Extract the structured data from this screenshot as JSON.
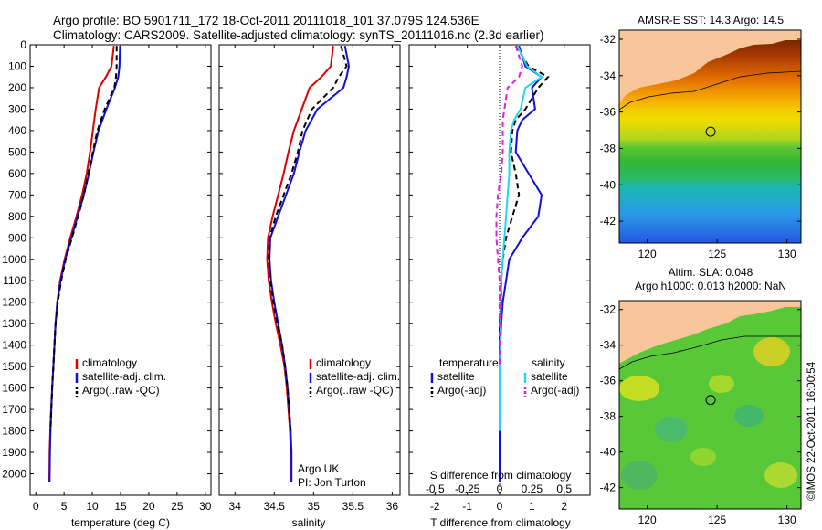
{
  "header": {
    "line1": "Argo profile: BO 5901711_172 18-Oct-2011 20111018_101 37.079S 124.536E",
    "line2": "Climatology: CARS2009. Satellite-adjusted climatology: synTS_20111016.nc (2.3d earlier)"
  },
  "credit": "©IMOS 22-Oct-2011 16:00:54",
  "colors": {
    "climatology": "#dd0000",
    "satellite": "#1010dd",
    "argo": "#000000",
    "salinity_satellite": "#22d8e8",
    "salinity_argo": "#dd22dd"
  },
  "chart_data": [
    {
      "type": "line",
      "name": "temperature",
      "xlabel": "temperature (deg C)",
      "ylabel": "",
      "xlim": [
        -1,
        31
      ],
      "ylim": [
        2100,
        0
      ],
      "xticks": [
        0,
        5,
        10,
        15,
        20,
        25,
        30
      ],
      "yticks": [
        0,
        100,
        200,
        300,
        400,
        500,
        600,
        700,
        800,
        900,
        1000,
        1100,
        1200,
        1300,
        1400,
        1500,
        1600,
        1700,
        1800,
        1900,
        2000
      ],
      "legend": [
        "climatology",
        "satellite-adj. clim.",
        "Argo(..raw -QC)"
      ],
      "legend_position": "lower-center",
      "series": [
        {
          "name": "climatology",
          "color": "climatology",
          "dash": false,
          "x": [
            13.8,
            13.4,
            12.4,
            11.2,
            10.6,
            10.1,
            9.6,
            9.0,
            8.2,
            7.2,
            6.1,
            5.1,
            4.3,
            3.8,
            3.5,
            3.3,
            3.1,
            2.9,
            2.7,
            2.55,
            2.45,
            2.4
          ],
          "y": [
            5,
            100,
            150,
            200,
            300,
            400,
            500,
            600,
            700,
            800,
            900,
            1000,
            1100,
            1200,
            1300,
            1400,
            1500,
            1600,
            1700,
            1800,
            1900,
            2040
          ]
        },
        {
          "name": "satellite-adj. clim.",
          "color": "satellite",
          "dash": false,
          "x": [
            14.9,
            14.8,
            14.6,
            14.0,
            12.5,
            11.1,
            10.2,
            9.4,
            8.5,
            7.4,
            6.3,
            5.2,
            4.4,
            3.8,
            3.5,
            3.3,
            3.1,
            2.9,
            2.75,
            2.6,
            2.5,
            2.45
          ],
          "y": [
            5,
            100,
            150,
            200,
            300,
            400,
            500,
            600,
            700,
            800,
            900,
            1000,
            1100,
            1200,
            1300,
            1400,
            1500,
            1600,
            1700,
            1800,
            1900,
            2040
          ]
        },
        {
          "name": "Argo(..raw -QC)",
          "color": "argo",
          "dash": true,
          "x": [
            14.3,
            14.3,
            14.2,
            13.9,
            12.2,
            10.9,
            10.1,
            9.3,
            8.5,
            7.5,
            6.4,
            5.3,
            4.5,
            3.9,
            3.5,
            3.3,
            3.1,
            2.9,
            2.75,
            2.6
          ],
          "y": [
            5,
            100,
            150,
            200,
            300,
            400,
            500,
            600,
            700,
            800,
            900,
            1000,
            1100,
            1200,
            1300,
            1400,
            1500,
            1600,
            1700,
            1800
          ]
        }
      ]
    },
    {
      "type": "line",
      "name": "salinity",
      "xlabel": "salinity",
      "ylabel": "",
      "xlim": [
        33.8,
        36.1
      ],
      "ylim": [
        2100,
        0
      ],
      "xticks": [
        34,
        34.5,
        35,
        35.5,
        36
      ],
      "yticks": [
        0,
        100,
        200,
        300,
        400,
        500,
        600,
        700,
        800,
        900,
        1000,
        1100,
        1200,
        1300,
        1400,
        1500,
        1600,
        1700,
        1800,
        1900,
        2000
      ],
      "legend": [
        "climatology",
        "satellite-adj. clim.",
        "Argo(..raw -QC)"
      ],
      "legend_position": "lower-center",
      "annotations": [
        "Argo UK",
        "PI: Jon Turton"
      ],
      "series": [
        {
          "name": "climatology",
          "color": "climatology",
          "dash": false,
          "x": [
            35.25,
            35.22,
            35.1,
            34.95,
            34.85,
            34.75,
            34.68,
            34.62,
            34.55,
            34.48,
            34.42,
            34.41,
            34.43,
            34.47,
            34.52,
            34.58,
            34.63,
            34.66,
            34.68,
            34.7,
            34.71,
            34.71
          ],
          "y": [
            5,
            100,
            150,
            200,
            300,
            400,
            500,
            600,
            700,
            800,
            900,
            1000,
            1100,
            1200,
            1300,
            1400,
            1500,
            1600,
            1700,
            1800,
            1900,
            2040
          ]
        },
        {
          "name": "satellite-adj. clim.",
          "color": "satellite",
          "dash": false,
          "x": [
            35.4,
            35.45,
            35.42,
            35.38,
            35.05,
            34.9,
            34.82,
            34.75,
            34.65,
            34.55,
            34.45,
            34.44,
            34.46,
            34.5,
            34.55,
            34.6,
            34.64,
            34.67,
            34.69,
            34.71,
            34.72,
            34.72
          ],
          "y": [
            5,
            100,
            150,
            200,
            300,
            400,
            500,
            600,
            700,
            800,
            900,
            1000,
            1100,
            1200,
            1300,
            1400,
            1500,
            1600,
            1700,
            1800,
            1900,
            2040
          ]
        },
        {
          "name": "Argo(..raw -QC)",
          "color": "argo",
          "dash": true,
          "x": [
            35.35,
            35.42,
            35.32,
            35.25,
            34.98,
            34.86,
            34.8,
            34.72,
            34.62,
            34.52,
            34.44,
            34.43,
            34.45,
            34.49,
            34.54,
            34.6,
            34.64,
            34.67,
            34.69,
            34.71
          ],
          "y": [
            5,
            100,
            150,
            200,
            300,
            400,
            500,
            600,
            700,
            800,
            900,
            1000,
            1100,
            1200,
            1300,
            1400,
            1500,
            1600,
            1700,
            1800
          ]
        }
      ]
    },
    {
      "type": "line",
      "name": "difference",
      "xlabel": "T difference from climatology",
      "xlabel_top": "S difference from climatology",
      "ylabel": "",
      "xlim": [
        -2.8,
        2.8
      ],
      "ylim": [
        2100,
        0
      ],
      "xticks": [
        -2,
        -1,
        0,
        1,
        2
      ],
      "xtick_labels": [
        "-2",
        "-1",
        "0",
        "1",
        "2"
      ],
      "s_tick_labels": [
        "-0.5",
        "-0.25",
        "0",
        "0.25",
        "0.5"
      ],
      "yticks": [
        0,
        100,
        200,
        300,
        400,
        500,
        600,
        700,
        800,
        900,
        1000,
        1100,
        1200,
        1300,
        1400,
        1500,
        1600,
        1700,
        1800,
        1900,
        2000
      ],
      "legend_temperature_title": "temperature",
      "legend_salinity_title": "salinity",
      "legend_temperature": [
        "satellite",
        "Argo(-adj)"
      ],
      "legend_salinity": [
        "satellite",
        "Argo(-adj)"
      ],
      "legend_position": "lower-center",
      "series": [
        {
          "name": "temperature satellite",
          "color": "satellite",
          "dash": false,
          "x": [
            0.6,
            0.8,
            1.3,
            1.0,
            1.1,
            0.7,
            0.55,
            0.5,
            0.9,
            1.3,
            1.2,
            0.7,
            0.3,
            0.2,
            0.1,
            0.05,
            0.02,
            0.0,
            0.0,
            0.0,
            0.0
          ],
          "y": [
            5,
            100,
            150,
            200,
            300,
            350,
            400,
            500,
            600,
            700,
            800,
            900,
            1000,
            1100,
            1200,
            1300,
            1400,
            1500,
            1600,
            1800,
            2040
          ]
        },
        {
          "name": "temperature Argo(-adj)",
          "color": "argo",
          "dash": true,
          "x": [
            0.5,
            0.9,
            1.5,
            1.2,
            0.8,
            0.5,
            0.4,
            0.35,
            0.5,
            0.6,
            0.4,
            0.2,
            0.1,
            0.05,
            0.05,
            0.0,
            0.0,
            0.0
          ],
          "y": [
            5,
            100,
            150,
            200,
            300,
            350,
            400,
            500,
            600,
            700,
            800,
            900,
            1000,
            1100,
            1200,
            1300,
            1500,
            1800
          ]
        },
        {
          "name": "salinity satellite",
          "color": "salinity_satellite",
          "dash": false,
          "x": [
            0.55,
            0.85,
            1.3,
            0.8,
            0.65,
            0.45,
            0.35,
            0.3,
            0.3,
            0.25,
            0.2,
            0.15,
            0.1,
            0.05,
            0.03,
            0.0,
            0.0
          ],
          "y": [
            5,
            100,
            150,
            200,
            300,
            350,
            400,
            500,
            600,
            700,
            800,
            900,
            1000,
            1100,
            1300,
            1500,
            1800
          ]
        },
        {
          "name": "salinity Argo(-adj)",
          "color": "salinity_argo",
          "dash": true,
          "x": [
            0.5,
            0.7,
            0.6,
            0.25,
            0.15,
            0.1,
            0.1,
            0.1,
            0.05,
            -0.05,
            -0.1,
            -0.1,
            -0.05,
            0.0,
            0.0,
            0.0
          ],
          "y": [
            5,
            100,
            150,
            200,
            300,
            350,
            400,
            500,
            600,
            700,
            800,
            900,
            1000,
            1100,
            1200,
            1500
          ]
        }
      ]
    },
    {
      "type": "heatmap",
      "name": "sst map",
      "title": "AMSR-E SST: 14.3 Argo: 14.5",
      "xlim": [
        118,
        131
      ],
      "ylim": [
        -43.2,
        -31.5
      ],
      "xticks": [
        120,
        125,
        130
      ],
      "yticks": [
        -32,
        -34,
        -36,
        -38,
        -40,
        -42
      ],
      "float_position": {
        "lon": 124.536,
        "lat": -37.079
      }
    },
    {
      "type": "heatmap",
      "name": "sla map",
      "title": "Altim. SLA: 0.048",
      "subtitle": "Argo h1000: 0.013 h2000: NaN",
      "xlim": [
        118,
        131
      ],
      "ylim": [
        -43.2,
        -31.5
      ],
      "xticks": [
        120,
        125,
        130
      ],
      "yticks": [
        -32,
        -34,
        -36,
        -38,
        -40,
        -42
      ],
      "float_position": {
        "lon": 124.536,
        "lat": -37.079
      }
    }
  ]
}
